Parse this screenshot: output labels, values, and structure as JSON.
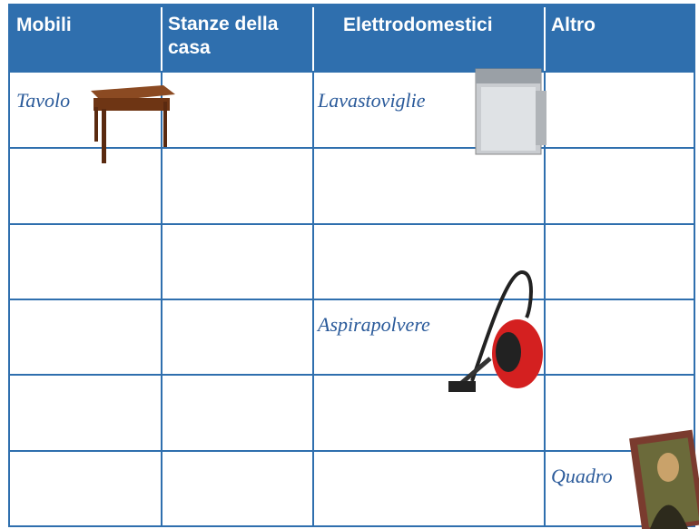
{
  "table": {
    "headers": [
      "Mobili",
      "Stanze della casa",
      "Elettrodomestici",
      "Altro"
    ],
    "items": [
      "Tavolo",
      "Lavastoviglie",
      "Aspirapolvere",
      "Quadro"
    ]
  }
}
